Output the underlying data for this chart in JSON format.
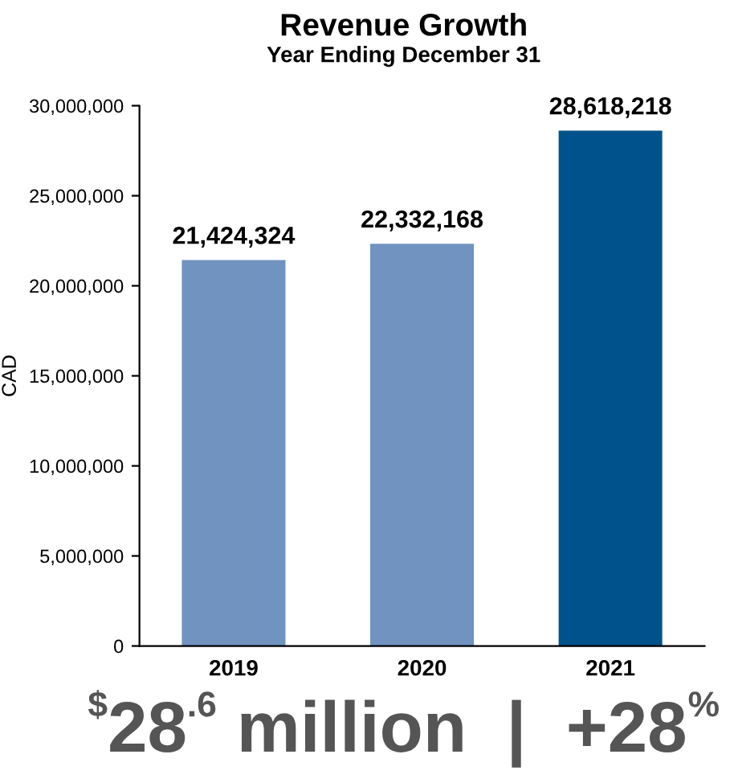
{
  "chart_data": {
    "type": "bar",
    "title": "Revenue Growth",
    "subtitle": "Year Ending December 31",
    "ylabel": "CAD",
    "categories": [
      "2019",
      "2020",
      "2021"
    ],
    "values": [
      21424324,
      22332168,
      28618218
    ],
    "colors": [
      "#7093c0",
      "#7093c0",
      "#00528c"
    ],
    "value_labels": [
      "21,424,324",
      "22,332,168",
      "28,618,218"
    ],
    "ylim": [
      0,
      30000000
    ],
    "yticks": [
      {
        "value": 0,
        "label": "0"
      },
      {
        "value": 5000000,
        "label": "5,000,000"
      },
      {
        "value": 10000000,
        "label": "10,000,000"
      },
      {
        "value": 15000000,
        "label": "15,000,000"
      },
      {
        "value": 20000000,
        "label": "20,000,000"
      },
      {
        "value": 25000000,
        "label": "25,000,000"
      },
      {
        "value": 30000000,
        "label": "30,000,000"
      }
    ],
    "grid": false,
    "annotations": [
      "$^{$}$28$^{.6}$ million  |  +28$^{%}$"
    ]
  }
}
